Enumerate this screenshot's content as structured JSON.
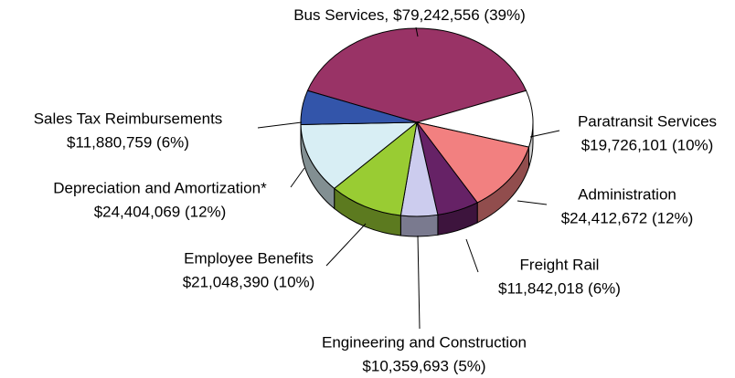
{
  "chart_data": {
    "type": "pie3d",
    "categories": [
      "Bus Services,",
      "Paratransit Services",
      "Administration",
      "Freight Rail",
      "Engineering and Construction",
      "Employee Benefits",
      "Depreciation and Amortization*",
      "Sales Tax Reimbursements"
    ],
    "values": [
      79242556,
      19726101,
      24412672,
      11842018,
      10359693,
      21048390,
      24404069,
      11880759
    ],
    "value_labels": [
      "$79,242,556 (39%)",
      "$19,726,101 (10%)",
      "$24,412,672 (12%)",
      "$11,842,018 (6%)",
      "$10,359,693 (5%)",
      "$21,048,390 (10%)",
      "$24,404,069 (12%)",
      "$11,880,759 (6%)"
    ],
    "colors": [
      "#993366",
      "#ffffff",
      "#f28080",
      "#662266",
      "#ccccee",
      "#99cc33",
      "#d8eef4",
      "#3355aa"
    ]
  }
}
